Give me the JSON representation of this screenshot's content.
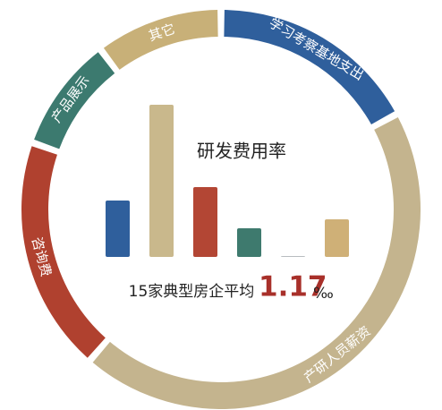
{
  "chart_data": [
    {
      "type": "pie",
      "categories": [
        "学习考察基地支出",
        "产研人员薪资",
        "咨询费",
        "产品展示",
        "其它"
      ],
      "values": [
        17,
        45,
        19,
        9,
        10
      ],
      "colors": [
        "#2f5f9c",
        "#c4b48e",
        "#b0412f",
        "#3c7a6f",
        "#c8b078"
      ]
    },
    {
      "type": "bar",
      "title": "研发费用率",
      "annotation": "15家典型房企平均",
      "average": 1.17,
      "average_unit": "‰",
      "categories": [
        null,
        null,
        null,
        null,
        null,
        null
      ],
      "values": [
        63,
        170,
        78,
        32,
        1,
        42
      ],
      "colors": [
        "#2f5f9c",
        "#c9b88c",
        "#b34634",
        "#3e7a6e",
        "#b8bcc0",
        "#cfb077"
      ],
      "ylim": [
        0,
        170
      ]
    }
  ]
}
